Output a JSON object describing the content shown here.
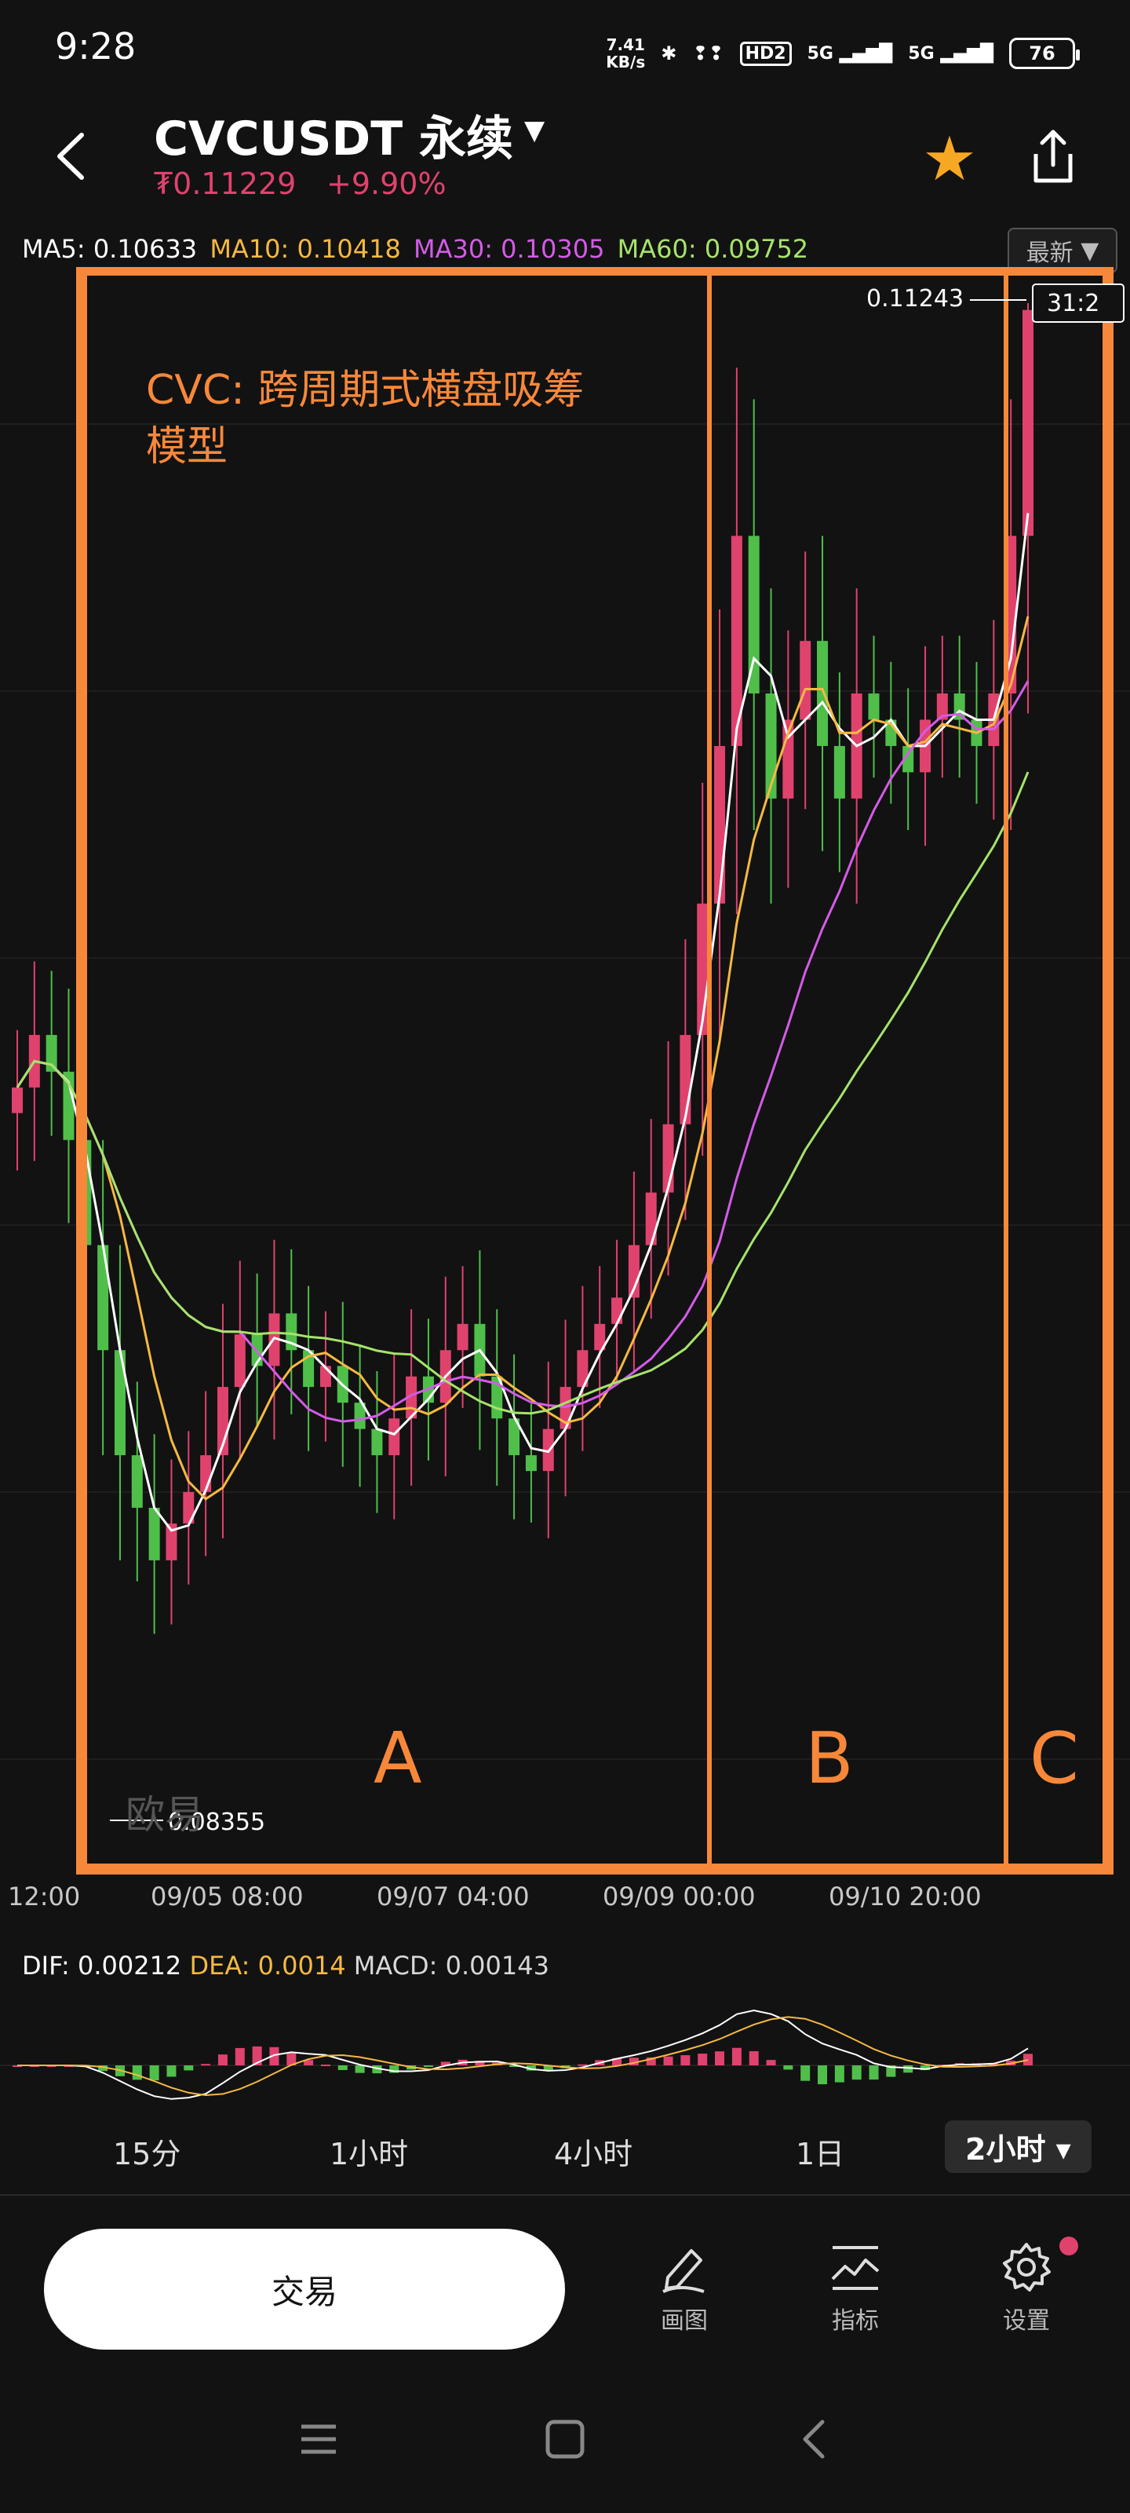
{
  "status_bar": {
    "time": "9:28",
    "net_speed_value": "7.41",
    "net_speed_unit": "KB/s",
    "signal1": "5G",
    "signal2": "5G",
    "hd_label": "HD2",
    "battery": "76"
  },
  "header": {
    "symbol": "CVCUSDT 永续",
    "price": "₮0.11229",
    "change": "+9.90%"
  },
  "ma": {
    "ma5": "MA5: 0.10633",
    "ma10": "MA10: 0.10418",
    "ma30": "MA30: 0.10305",
    "ma60": "MA60: 0.09752",
    "latest_label": "最新"
  },
  "chart_annotations": {
    "title_line1": "CVC: 跨周期式横盘吸筹",
    "title_line2": "模型",
    "zone_a": "A",
    "zone_b": "B",
    "zone_c": "C",
    "high_label": "0.11243",
    "low_label": "0.08355",
    "countdown": "31:2",
    "watermark": "欧易"
  },
  "x_axis": [
    "12:00",
    "09/05 08:00",
    "09/07 04:00",
    "09/09 00:00",
    "09/10 20:00"
  ],
  "macd": {
    "dif": "DIF: 0.00212",
    "dea": "DEA: 0.0014",
    "macd": "MACD: 0.00143"
  },
  "intervals": [
    "15分",
    "1小时",
    "4小时",
    "1日",
    "2小时"
  ],
  "actions": {
    "trade": "交易",
    "draw": "画图",
    "indicator": "指标",
    "settings": "设置"
  },
  "colors": {
    "up": "#e0426e",
    "down": "#4fbf4a",
    "accent": "#f7883a",
    "ma5": "#ffffff",
    "ma10": "#f5b942",
    "ma30": "#d45be8",
    "ma60": "#a6e36b"
  },
  "chart_data": {
    "type": "candlestick",
    "high": 0.11243,
    "low": 0.08355,
    "close": [
      0.0975,
      0.0985,
      0.0978,
      0.0965,
      0.0945,
      0.0925,
      0.0905,
      0.0895,
      0.0885,
      0.0892,
      0.0898,
      0.0905,
      0.0918,
      0.0928,
      0.0922,
      0.0932,
      0.0925,
      0.0918,
      0.0922,
      0.0915,
      0.091,
      0.0905,
      0.0912,
      0.092,
      0.0915,
      0.0925,
      0.093,
      0.092,
      0.0912,
      0.0905,
      0.0902,
      0.091,
      0.0918,
      0.0925,
      0.093,
      0.0935,
      0.0945,
      0.0955,
      0.0968,
      0.0985,
      0.101,
      0.104,
      0.108,
      0.105,
      0.103,
      0.1045,
      0.106,
      0.104,
      0.103,
      0.105,
      0.1045,
      0.104,
      0.1035,
      0.1045,
      0.105,
      0.1045,
      0.104,
      0.105,
      0.108,
      0.1123
    ]
  }
}
